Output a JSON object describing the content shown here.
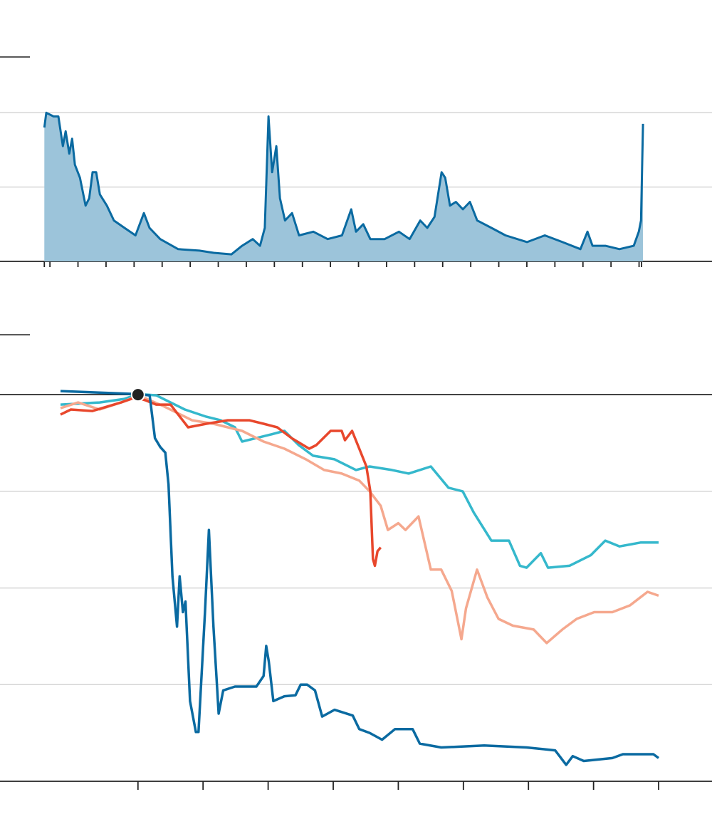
{
  "chart_data": [
    {
      "type": "area",
      "color": "#0a6aa1",
      "fill": "#9cc4da",
      "x": [
        1999.8,
        1999.87,
        2000.13,
        2000.3,
        2000.46,
        2000.56,
        2000.69,
        2000.79,
        2000.89,
        2001.07,
        2001.27,
        2001.4,
        2001.52,
        2001.65,
        2001.78,
        2002.03,
        2002.28,
        2002.66,
        2003.05,
        2003.35,
        2003.55,
        2003.93,
        2004.57,
        2005.33,
        2005.84,
        2006.47,
        2006.85,
        2007.23,
        2007.49,
        2007.66,
        2007.79,
        2007.92,
        2008.07,
        2008.2,
        2008.38,
        2008.63,
        2008.88,
        2009.39,
        2009.9,
        2010.41,
        2010.74,
        2010.91,
        2011.17,
        2011.42,
        2011.93,
        2012.44,
        2012.82,
        2013.2,
        2013.45,
        2013.71,
        2013.96,
        2014.09,
        2014.26,
        2014.47,
        2014.72,
        2014.97,
        2015.23,
        2015.74,
        2016.24,
        2017.01,
        2017.64,
        2018.27,
        2018.91,
        2019.16,
        2019.34,
        2019.8,
        2020.3,
        2020.81,
        2020.99,
        2021.07,
        2021.14
      ],
      "values": [
        36,
        40,
        39,
        39,
        31,
        35,
        29,
        33,
        26,
        22.5,
        15,
        17,
        24,
        24,
        18,
        15,
        11,
        9,
        7,
        13,
        9,
        6,
        3.3,
        2.9,
        2.3,
        1.9,
        4.2,
        6,
        4.2,
        9,
        39,
        24,
        31,
        17,
        11,
        13,
        7,
        8,
        6,
        7,
        14,
        8,
        10,
        6,
        6,
        8,
        6,
        11,
        9,
        12,
        24,
        22.5,
        15,
        16,
        14,
        16,
        11,
        9,
        7,
        5.2,
        7,
        5.2,
        3.3,
        8,
        4.2,
        4.2,
        3.3,
        4.2,
        8,
        11,
        37
      ],
      "xlim": [
        1998.22,
        2023.6
      ],
      "xticks": [
        1999.8,
        2000,
        2001,
        2002,
        2003,
        2004,
        2005,
        2006,
        2007,
        2008,
        2009,
        2010,
        2011,
        2012,
        2013,
        2014,
        2015,
        2016,
        2017,
        2018,
        2019,
        2020,
        2021,
        2021.09
      ],
      "ylim": [
        0,
        55
      ],
      "yticks": [
        0,
        20,
        40
      ],
      "grid": true
    },
    {
      "type": "line",
      "marker": {
        "x": 0,
        "y": 0,
        "color": "#222222"
      },
      "series": [
        {
          "color": "#35b8cc",
          "x": [
            -1.19,
            -0.59,
            -0.21,
            0.01,
            0.28,
            0.5,
            0.72,
            1.05,
            1.27,
            1.49,
            1.6,
            1.82,
            2.04,
            2.25,
            2.47,
            2.69,
            3.02,
            3.35,
            3.56,
            3.9,
            4.16,
            4.5,
            4.77,
            4.99,
            5.16,
            5.43,
            5.7,
            5.87,
            5.97,
            6.19,
            6.3,
            6.63,
            6.96,
            7.18,
            7.4,
            7.72,
            8.0
          ],
          "values": [
            -1.03,
            -0.81,
            -0.44,
            0.07,
            -0.07,
            -0.81,
            -1.54,
            -2.28,
            -2.65,
            -3.38,
            -4.85,
            -4.49,
            -4.12,
            -3.75,
            -5.22,
            -6.32,
            -6.69,
            -7.79,
            -7.43,
            -7.79,
            -8.16,
            -7.43,
            -9.63,
            -10.0,
            -12.2,
            -15.1,
            -15.1,
            -17.7,
            -17.9,
            -16.4,
            -17.9,
            -17.7,
            -16.6,
            -15.1,
            -15.7,
            -15.3,
            -15.3
          ]
        },
        {
          "color": "#f5a88e",
          "x": [
            -1.19,
            -0.92,
            -0.59,
            -0.26,
            0.01,
            0.39,
            0.83,
            1.16,
            1.6,
            1.93,
            2.25,
            2.58,
            2.86,
            3.13,
            3.4,
            3.56,
            3.73,
            3.84,
            4.0,
            4.11,
            4.31,
            4.5,
            4.66,
            4.82,
            4.97,
            5.04,
            5.21,
            5.37,
            5.54,
            5.76,
            6.08,
            6.28,
            6.52,
            6.74,
            7.01,
            7.29,
            7.56,
            7.83,
            8.0
          ],
          "values": [
            -1.4,
            -0.81,
            -1.54,
            -0.81,
            -0.07,
            -1.18,
            -2.65,
            -3.01,
            -3.75,
            -4.85,
            -5.59,
            -6.69,
            -7.79,
            -8.16,
            -8.9,
            -10.0,
            -11.5,
            -14.0,
            -13.3,
            -14.0,
            -12.6,
            -18.1,
            -18.1,
            -20.3,
            -25.3,
            -22.1,
            -18.1,
            -21.0,
            -23.2,
            -23.9,
            -24.3,
            -25.7,
            -24.3,
            -23.2,
            -22.5,
            -22.5,
            -21.8,
            -20.4,
            -20.8
          ]
        },
        {
          "color": "#e8472c",
          "x": [
            -1.19,
            -1.03,
            -0.7,
            -0.26,
            -0.04,
            0.12,
            0.28,
            0.5,
            0.77,
            1.05,
            1.38,
            1.71,
            1.93,
            2.14,
            2.36,
            2.63,
            2.74,
            2.96,
            3.13,
            3.18,
            3.29,
            3.4,
            3.51,
            3.57,
            3.61,
            3.64,
            3.68,
            3.73
          ],
          "values": [
            -2.06,
            -1.54,
            -1.69,
            -0.81,
            -0.29,
            -0.59,
            -1.03,
            -1.03,
            -3.38,
            -3.01,
            -2.65,
            -2.65,
            -3.01,
            -3.38,
            -4.49,
            -5.59,
            -5.22,
            -3.75,
            -3.75,
            -4.71,
            -3.75,
            -5.59,
            -7.43,
            -10.0,
            -17.0,
            -17.7,
            -16.2,
            -15.8
          ]
        },
        {
          "color": "#0a6aa1",
          "x": [
            -1.19,
            -0.04,
            0.18,
            0.26,
            0.34,
            0.42,
            0.47,
            0.53,
            0.6,
            0.64,
            0.69,
            0.73,
            0.8,
            0.89,
            0.93,
            1.03,
            1.09,
            1.16,
            1.24,
            1.31,
            1.49,
            1.82,
            1.93,
            1.97,
            2.01,
            2.08,
            2.25,
            2.42,
            2.5,
            2.6,
            2.72,
            2.83,
            3.02,
            3.3,
            3.4,
            3.56,
            3.75,
            3.95,
            4.22,
            4.33,
            4.66,
            5.32,
            5.97,
            6.41,
            6.58,
            6.68,
            6.85,
            7.29,
            7.45,
            7.92,
            8.0
          ],
          "values": [
            0.37,
            0.07,
            -0.07,
            -4.5,
            -5.4,
            -6.0,
            -9.3,
            -18.8,
            -24.0,
            -18.8,
            -22.5,
            -21.4,
            -31.7,
            -34.9,
            -34.9,
            -22.5,
            -14.0,
            -24.0,
            -33.0,
            -30.6,
            -30.2,
            -30.2,
            -29.1,
            -26.0,
            -27.6,
            -31.7,
            -31.2,
            -31.1,
            -30.0,
            -30.0,
            -30.6,
            -33.3,
            -32.6,
            -33.2,
            -34.6,
            -35.0,
            -35.7,
            -34.6,
            -34.6,
            -36.1,
            -36.5,
            -36.3,
            -36.5,
            -36.8,
            -38.3,
            -37.4,
            -37.9,
            -37.6,
            -37.2,
            -37.2,
            -37.6
          ]
        }
      ],
      "xlim": [
        -2.12,
        8.82
      ],
      "xticks": [
        0,
        1,
        2,
        3,
        4,
        5,
        6,
        7,
        8
      ],
      "ylim": [
        -40,
        6.2
      ],
      "yticks": [
        -40,
        -30,
        -20,
        -10,
        0
      ],
      "grid": true
    }
  ]
}
